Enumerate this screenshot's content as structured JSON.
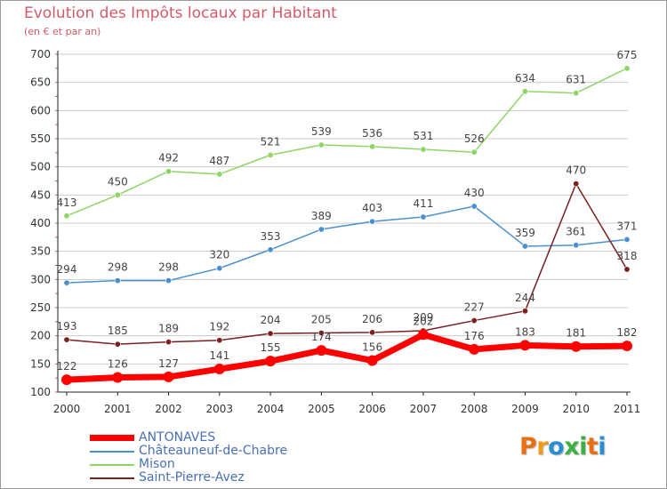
{
  "title": "Evolution des Impôts locaux par Habitant",
  "subtitle": "(en € et par an)",
  "logo": "Proxiti",
  "colors": {
    "title": "#d45a6a",
    "axis": "#222222",
    "grid": "#cccccc",
    "legend_text": "#4a6fb5",
    "logo": [
      "#e96f14",
      "#f09a1a",
      "#2a8fd0",
      "#3cb043",
      "#3cb043",
      "#e96f14",
      "#2a8fd0"
    ]
  },
  "chart_data": {
    "type": "line",
    "title": "Evolution des Impôts locaux par Habitant",
    "subtitle": "(en € et par an)",
    "x": [
      "2000",
      "2001",
      "2002",
      "2003",
      "2004",
      "2005",
      "2006",
      "2007",
      "2008",
      "2009",
      "2010",
      "2011"
    ],
    "ylim": [
      100,
      700
    ],
    "yticks": [
      100,
      150,
      200,
      250,
      300,
      350,
      400,
      450,
      500,
      550,
      600,
      650,
      700
    ],
    "grid": "horizontal",
    "legend_position": "bottom-left",
    "series": [
      {
        "name": "ANTONAVES",
        "color": "#ff0000",
        "values": [
          122,
          126,
          127,
          141,
          155,
          174,
          156,
          202,
          176,
          183,
          181,
          182
        ],
        "labels": [
          "122",
          "126",
          "127",
          "141",
          "155",
          "174",
          "156",
          "202",
          "176",
          "183",
          "181",
          "182"
        ]
      },
      {
        "name": "Châteauneuf-de-Chabre",
        "color": "#4a90d0",
        "values": [
          294,
          298,
          298,
          320,
          353,
          389,
          403,
          411,
          430,
          359,
          361,
          371
        ],
        "labels": [
          "294",
          "298",
          "298",
          "320",
          "353",
          "389",
          "403",
          "411",
          "430",
          "359",
          "361",
          "371"
        ]
      },
      {
        "name": "Mison",
        "color": "#8fd466",
        "values": [
          413,
          450,
          492,
          487,
          521,
          539,
          536,
          531,
          526,
          634,
          631,
          675
        ],
        "labels": [
          "413",
          "450",
          "492",
          "487",
          "521",
          "539",
          "536",
          "531",
          "526",
          "634",
          "631",
          "675"
        ]
      },
      {
        "name": "Saint-Pierre-Avez",
        "color": "#7a2020",
        "values": [
          193,
          185,
          189,
          192,
          204,
          205,
          206,
          209,
          227,
          244,
          470,
          318
        ],
        "labels": [
          "193",
          "185",
          "189",
          "192",
          "204",
          "205",
          "206",
          "209",
          "227",
          "244",
          "470",
          "318"
        ]
      }
    ]
  }
}
